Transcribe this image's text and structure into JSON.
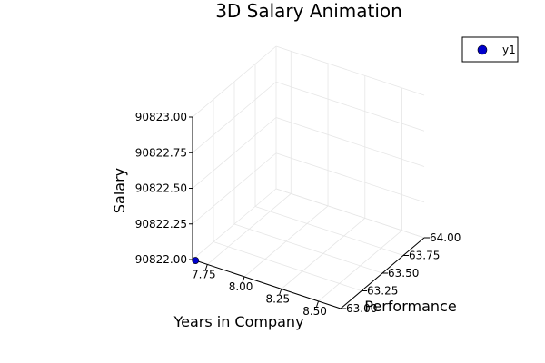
{
  "chart_data": {
    "type": "scatter",
    "title": "3D Salary Animation",
    "xlabel": "Years in Company",
    "ylabel": "Performance",
    "zlabel": "Salary",
    "xlim": [
      7.65,
      8.65
    ],
    "ylim": [
      63.0,
      64.0
    ],
    "zlim": [
      90822.0,
      90823.0
    ],
    "x_ticks": [
      "7.75",
      "8.00",
      "8.25",
      "8.50"
    ],
    "x_tick_values": [
      7.75,
      8.0,
      8.25,
      8.5
    ],
    "y_ticks": [
      "63.00",
      "63.25",
      "63.50",
      "63.75",
      "64.00"
    ],
    "y_tick_values": [
      63.0,
      63.25,
      63.5,
      63.75,
      64.0
    ],
    "z_ticks": [
      "90822.00",
      "90822.25",
      "90822.50",
      "90822.75",
      "90823.00"
    ],
    "z_tick_values": [
      90822.0,
      90822.25,
      90822.5,
      90822.75,
      90823.0
    ],
    "series": [
      {
        "name": "y1",
        "color": "#0000cc",
        "points": [
          {
            "x": 7.67,
            "y": 63.0,
            "z": 90822.0
          }
        ]
      }
    ],
    "grid": true,
    "legend": "top-right"
  }
}
